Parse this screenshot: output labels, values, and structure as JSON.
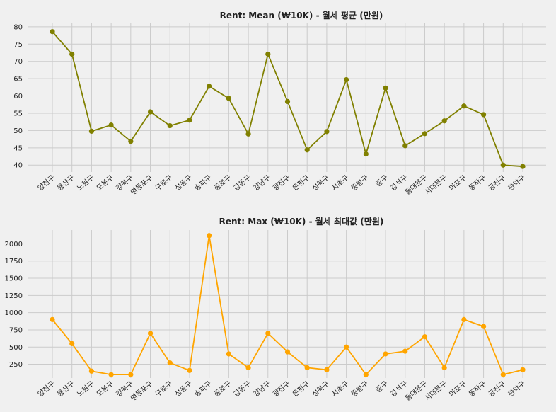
{
  "chart_data": [
    {
      "type": "line",
      "title": "Rent: Mean (₩10K) - 월세 평균 (만원)",
      "xlabel": "",
      "ylabel": "",
      "grid": true,
      "color": "#808000",
      "ylim": [
        38,
        81
      ],
      "yticks": [
        40,
        45,
        50,
        55,
        60,
        65,
        70,
        75,
        80
      ],
      "categories": [
        "양천구",
        "용산구",
        "노원구",
        "도봉구",
        "강북구",
        "영등포구",
        "구로구",
        "성동구",
        "송파구",
        "종로구",
        "강동구",
        "강남구",
        "광진구",
        "은평구",
        "성북구",
        "서초구",
        "중랑구",
        "중구",
        "강서구",
        "동대문구",
        "서대문구",
        "마포구",
        "동작구",
        "금천구",
        "관악구"
      ],
      "values": [
        78.6,
        72.1,
        49.8,
        51.6,
        46.9,
        55.4,
        51.4,
        53.0,
        62.8,
        59.3,
        49.0,
        72.1,
        58.4,
        44.4,
        49.7,
        64.7,
        43.2,
        62.3,
        45.6,
        49.1,
        52.8,
        57.1,
        54.6,
        40.0,
        39.6
      ]
    },
    {
      "type": "line",
      "title": "Rent: Max (₩10K) - 월세 최대값 (만원)",
      "xlabel": "",
      "ylabel": "",
      "grid": true,
      "color": "#ffa500",
      "ylim": [
        50,
        2200
      ],
      "yticks": [
        250,
        500,
        750,
        1000,
        1250,
        1500,
        1750,
        2000
      ],
      "categories": [
        "양천구",
        "용산구",
        "노원구",
        "도봉구",
        "강북구",
        "영등포구",
        "구로구",
        "성동구",
        "송파구",
        "종로구",
        "강동구",
        "강남구",
        "광진구",
        "은평구",
        "성북구",
        "서초구",
        "중랑구",
        "중구",
        "강서구",
        "동대문구",
        "서대문구",
        "마포구",
        "동작구",
        "금천구",
        "관악구"
      ],
      "values": [
        900,
        550,
        150,
        100,
        100,
        700,
        270,
        160,
        2120,
        400,
        200,
        700,
        430,
        200,
        170,
        500,
        100,
        400,
        440,
        650,
        200,
        900,
        800,
        100,
        170
      ]
    }
  ]
}
